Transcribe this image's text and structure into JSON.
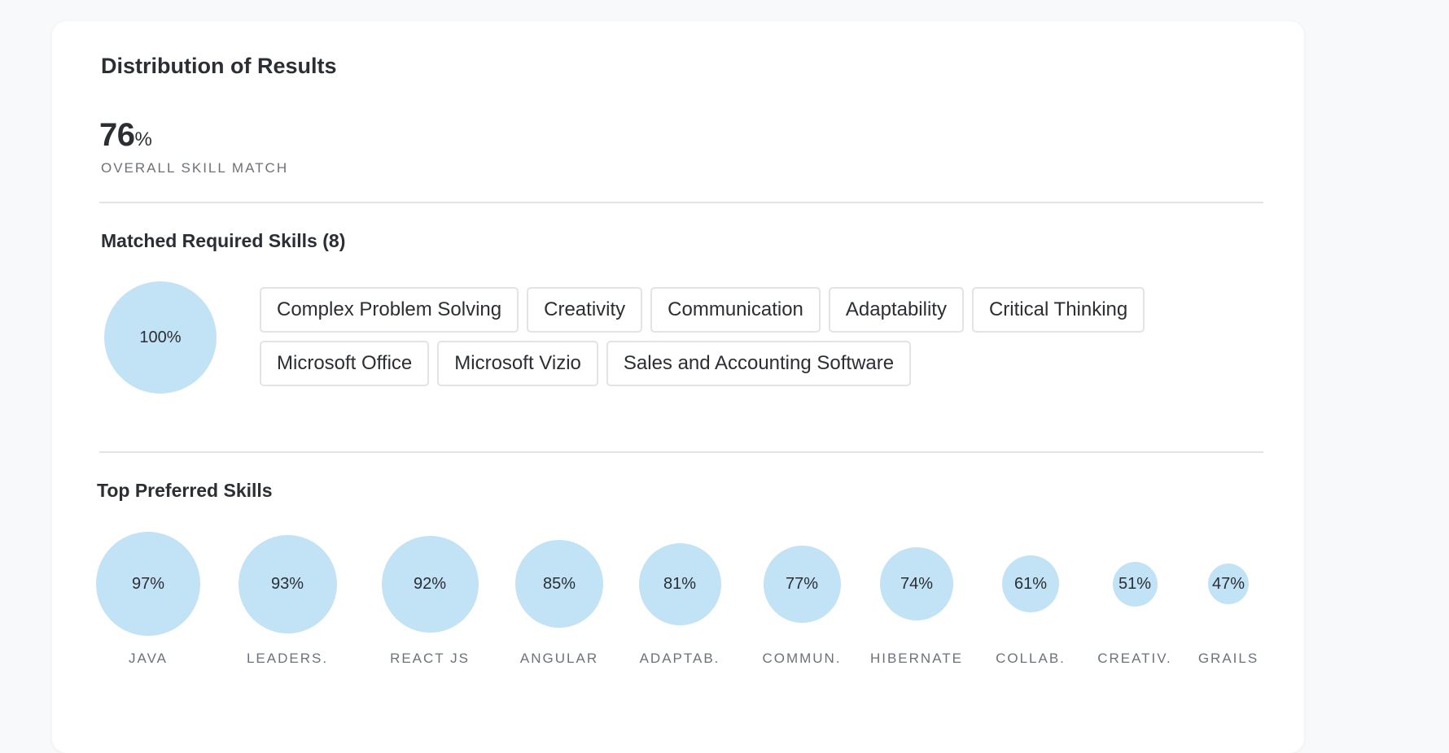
{
  "card": {
    "title": "Distribution of Results"
  },
  "overall": {
    "value": "76",
    "unit": "%",
    "label": "OVERALL SKILL MATCH"
  },
  "matched": {
    "title": "Matched Required Skills (8)",
    "percent": 100,
    "percent_text": "100%",
    "skills": [
      "Complex Problem Solving",
      "Creativity",
      "Communication",
      "Adaptability",
      "Critical Thinking",
      "Microsoft Office",
      "Microsoft Vizio",
      "Sales and Accounting Software"
    ]
  },
  "preferred": {
    "title": "Top Preferred Skills",
    "skills": [
      {
        "label": "JAVA",
        "value": 97,
        "text": "97%"
      },
      {
        "label": "LEADERS.",
        "value": 93,
        "text": "93%"
      },
      {
        "label": "REACT JS",
        "value": 92,
        "text": "92%"
      },
      {
        "label": "ANGULAR",
        "value": 85,
        "text": "85%"
      },
      {
        "label": "ADAPTAB.",
        "value": 81,
        "text": "81%"
      },
      {
        "label": "COMMUN.",
        "value": 77,
        "text": "77%"
      },
      {
        "label": "HIBERNATE",
        "value": 74,
        "text": "74%"
      },
      {
        "label": "COLLAB.",
        "value": 61,
        "text": "61%"
      },
      {
        "label": "CREATIV.",
        "value": 51,
        "text": "51%"
      },
      {
        "label": "GRAILS",
        "value": 47,
        "text": "47%"
      }
    ]
  },
  "colors": {
    "bubble": "#c2e2f6",
    "card": "#ffffff",
    "background": "#f7f9fb",
    "muted_text": "#6d7278"
  }
}
